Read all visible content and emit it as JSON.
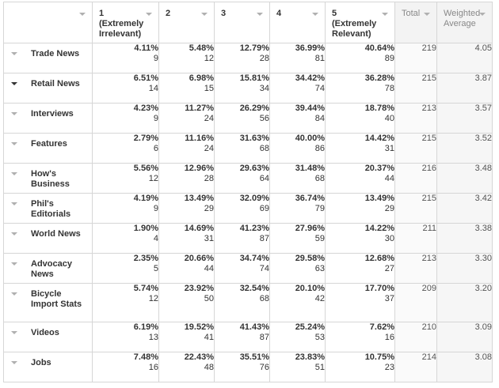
{
  "headers": {
    "c1": "1 (Extremely Irrelevant)",
    "c2": "2",
    "c3": "3",
    "c4": "4",
    "c5": "5 (Extremely Relevant)",
    "total": "Total",
    "weighted": "Weighted Average"
  },
  "rows": [
    {
      "label": "Trade News",
      "cells": [
        {
          "pct": "4.11%",
          "n": "9"
        },
        {
          "pct": "5.48%",
          "n": "12"
        },
        {
          "pct": "12.79%",
          "n": "28"
        },
        {
          "pct": "36.99%",
          "n": "81"
        },
        {
          "pct": "40.64%",
          "n": "89"
        }
      ],
      "total": "219",
      "avg": "4.05"
    },
    {
      "label": "Retail News",
      "cells": [
        {
          "pct": "6.51%",
          "n": "14"
        },
        {
          "pct": "6.98%",
          "n": "15"
        },
        {
          "pct": "15.81%",
          "n": "34"
        },
        {
          "pct": "34.42%",
          "n": "74"
        },
        {
          "pct": "36.28%",
          "n": "78"
        }
      ],
      "total": "215",
      "avg": "3.87"
    },
    {
      "label": "Interviews",
      "cells": [
        {
          "pct": "4.23%",
          "n": "9"
        },
        {
          "pct": "11.27%",
          "n": "24"
        },
        {
          "pct": "26.29%",
          "n": "56"
        },
        {
          "pct": "39.44%",
          "n": "84"
        },
        {
          "pct": "18.78%",
          "n": "40"
        }
      ],
      "total": "213",
      "avg": "3.57"
    },
    {
      "label": "Features",
      "cells": [
        {
          "pct": "2.79%",
          "n": "6"
        },
        {
          "pct": "11.16%",
          "n": "24"
        },
        {
          "pct": "31.63%",
          "n": "68"
        },
        {
          "pct": "40.00%",
          "n": "86"
        },
        {
          "pct": "14.42%",
          "n": "31"
        }
      ],
      "total": "215",
      "avg": "3.52"
    },
    {
      "label": "How's Business",
      "cells": [
        {
          "pct": "5.56%",
          "n": "12"
        },
        {
          "pct": "12.96%",
          "n": "28"
        },
        {
          "pct": "29.63%",
          "n": "64"
        },
        {
          "pct": "31.48%",
          "n": "68"
        },
        {
          "pct": "20.37%",
          "n": "44"
        }
      ],
      "total": "216",
      "avg": "3.48"
    },
    {
      "label": "Phil's Editorials",
      "cells": [
        {
          "pct": "4.19%",
          "n": "9"
        },
        {
          "pct": "13.49%",
          "n": "29"
        },
        {
          "pct": "32.09%",
          "n": "69"
        },
        {
          "pct": "36.74%",
          "n": "79"
        },
        {
          "pct": "13.49%",
          "n": "29"
        }
      ],
      "total": "215",
      "avg": "3.42"
    },
    {
      "label": "World News",
      "cells": [
        {
          "pct": "1.90%",
          "n": "4"
        },
        {
          "pct": "14.69%",
          "n": "31"
        },
        {
          "pct": "41.23%",
          "n": "87"
        },
        {
          "pct": "27.96%",
          "n": "59"
        },
        {
          "pct": "14.22%",
          "n": "30"
        }
      ],
      "total": "211",
      "avg": "3.38"
    },
    {
      "label": "Advocacy News",
      "cells": [
        {
          "pct": "2.35%",
          "n": "5"
        },
        {
          "pct": "20.66%",
          "n": "44"
        },
        {
          "pct": "34.74%",
          "n": "74"
        },
        {
          "pct": "29.58%",
          "n": "63"
        },
        {
          "pct": "12.68%",
          "n": "27"
        }
      ],
      "total": "213",
      "avg": "3.30"
    },
    {
      "label": "Bicycle Import Stats",
      "cells": [
        {
          "pct": "5.74%",
          "n": "12"
        },
        {
          "pct": "23.92%",
          "n": "50"
        },
        {
          "pct": "32.54%",
          "n": "68"
        },
        {
          "pct": "20.10%",
          "n": "42"
        },
        {
          "pct": "17.70%",
          "n": "37"
        }
      ],
      "total": "209",
      "avg": "3.20"
    },
    {
      "label": "Videos",
      "cells": [
        {
          "pct": "6.19%",
          "n": "13"
        },
        {
          "pct": "19.52%",
          "n": "41"
        },
        {
          "pct": "41.43%",
          "n": "87"
        },
        {
          "pct": "25.24%",
          "n": "53"
        },
        {
          "pct": "7.62%",
          "n": "16"
        }
      ],
      "total": "210",
      "avg": "3.09"
    },
    {
      "label": "Jobs",
      "cells": [
        {
          "pct": "7.48%",
          "n": "16"
        },
        {
          "pct": "22.43%",
          "n": "48"
        },
        {
          "pct": "35.51%",
          "n": "76"
        },
        {
          "pct": "23.83%",
          "n": "51"
        },
        {
          "pct": "10.75%",
          "n": "23"
        }
      ],
      "total": "214",
      "avg": "3.08"
    }
  ],
  "icons": {
    "sort": "caret-down-icon",
    "row_toggle": "caret-down-icon"
  }
}
